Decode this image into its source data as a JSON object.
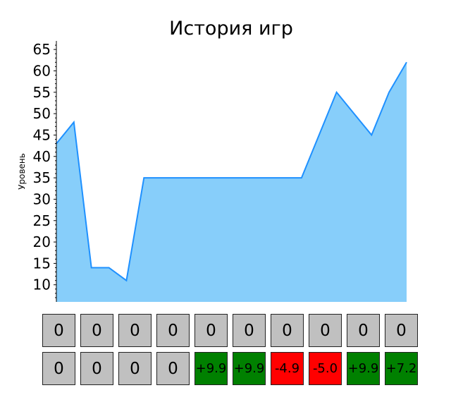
{
  "chart_data": {
    "type": "area",
    "title": "История игр",
    "xlabel": "",
    "ylabel": "Уровень",
    "x": [
      0,
      1,
      2,
      3,
      4,
      5,
      6,
      7,
      8,
      9,
      10,
      11,
      12,
      13,
      14,
      15,
      16,
      17,
      18,
      19,
      20
    ],
    "values": [
      43,
      48,
      14,
      14,
      11,
      35,
      35,
      35,
      35,
      35,
      35,
      35,
      35,
      35,
      35,
      45,
      55,
      50,
      45,
      55,
      62
    ],
    "ylim": [
      6,
      67
    ],
    "yticks": [
      10,
      15,
      20,
      25,
      30,
      35,
      40,
      45,
      50,
      55,
      60,
      65
    ],
    "grid": false,
    "fill_color": "#87CEFA",
    "line_color": "#1E90FF"
  },
  "history_grid": {
    "rows": [
      [
        {
          "text": "0",
          "color": "#C0C0C0"
        },
        {
          "text": "0",
          "color": "#C0C0C0"
        },
        {
          "text": "0",
          "color": "#C0C0C0"
        },
        {
          "text": "0",
          "color": "#C0C0C0"
        },
        {
          "text": "0",
          "color": "#C0C0C0"
        },
        {
          "text": "0",
          "color": "#C0C0C0"
        },
        {
          "text": "0",
          "color": "#C0C0C0"
        },
        {
          "text": "0",
          "color": "#C0C0C0"
        },
        {
          "text": "0",
          "color": "#C0C0C0"
        },
        {
          "text": "0",
          "color": "#C0C0C0"
        }
      ],
      [
        {
          "text": "0",
          "color": "#C0C0C0"
        },
        {
          "text": "0",
          "color": "#C0C0C0"
        },
        {
          "text": "0",
          "color": "#C0C0C0"
        },
        {
          "text": "0",
          "color": "#C0C0C0"
        },
        {
          "text": "+9.9",
          "color": "#008000"
        },
        {
          "text": "+9.9",
          "color": "#008000"
        },
        {
          "text": "-4.9",
          "color": "#FF0000"
        },
        {
          "text": "-5.0",
          "color": "#FF0000"
        },
        {
          "text": "+9.9",
          "color": "#008000"
        },
        {
          "text": "+7.2",
          "color": "#008000"
        }
      ]
    ]
  }
}
